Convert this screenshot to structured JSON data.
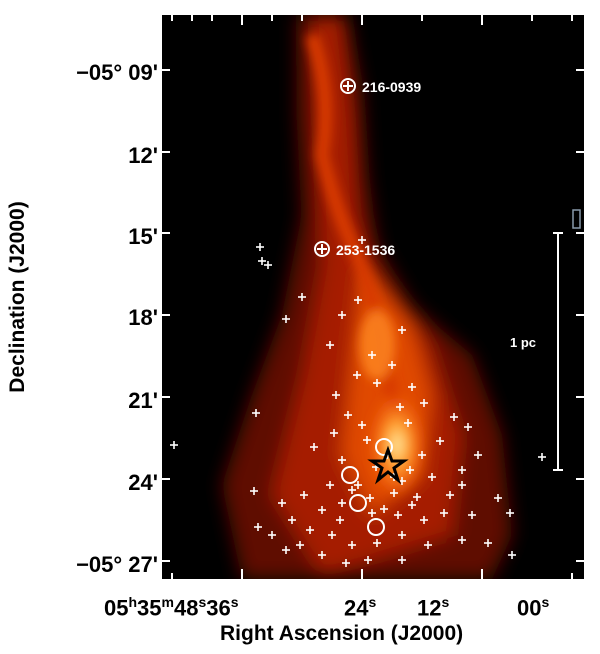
{
  "axes": {
    "ylabel": "Declination (J2000)",
    "xlabel": "Right Ascension (J2000)",
    "yticks": [
      "−05° 09'",
      "12'",
      "15'",
      "18'",
      "21'",
      "24'",
      "−05° 27'"
    ],
    "xticks": [
      {
        "h": "05",
        "m": "35",
        "s": "48",
        "label2": "36"
      },
      {
        "label": "24"
      },
      {
        "label": "12"
      },
      {
        "label": "00"
      }
    ]
  },
  "annotations": {
    "source1": "216-0939",
    "source2": "253-1536",
    "scale_bar": "1 pc"
  },
  "colors": {
    "background": "#000000",
    "emission_low": "#5a0a00",
    "emission_mid": "#c02a00",
    "emission_high": "#ffd070",
    "markers": "#ffffff"
  },
  "icons": {
    "star": "star-outline-icon",
    "circle_marker": "circle-plus-icon",
    "cross_marker": "cross-marker-icon"
  }
}
